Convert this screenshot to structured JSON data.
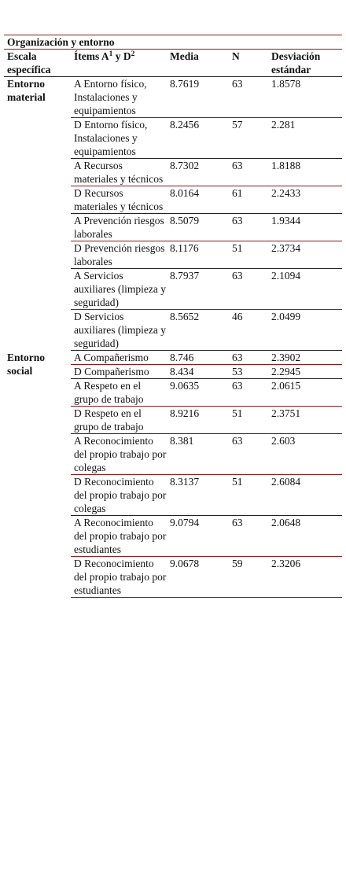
{
  "table": {
    "title": "Organización y entorno",
    "header": {
      "scale": "Escala específica",
      "items": [
        "Ítems A",
        "1",
        " y D",
        "2"
      ],
      "mean": "Media",
      "n": "N",
      "sd": "Desviación estándar"
    },
    "groups": [
      {
        "name": "Entorno material",
        "rows": [
          [
            "A Entorno físico, Instalaciones y equipamientos",
            8.7619,
            63,
            1.8578
          ],
          [
            "D Entorno físico, Instalaciones y equipamientos",
            8.2456,
            57,
            2.281
          ],
          [
            "A Recursos materiales y técnicos",
            8.7302,
            63,
            1.8188
          ],
          [
            "D Recursos materiales y técnicos",
            8.0164,
            61,
            2.2433
          ],
          [
            "A Prevención riesgos laborales",
            8.5079,
            63,
            1.9344
          ],
          [
            "D Prevención riesgos laborales",
            8.1176,
            51,
            2.3734
          ],
          [
            "A Servicios auxiliares (limpieza y seguridad)",
            8.7937,
            63,
            2.1094
          ],
          [
            "D Servicios auxiliares (limpieza y seguridad)",
            8.5652,
            46,
            2.0499
          ]
        ]
      },
      {
        "name": "Entorno social",
        "rows": [
          [
            "A Compañerismo",
            8.746,
            63,
            2.3902
          ],
          [
            "D Compañerismo",
            8.434,
            53,
            2.2945
          ],
          [
            "A Respeto en el grupo de trabajo",
            9.0635,
            63,
            2.0615
          ],
          [
            "D Respeto en el grupo de trabajo",
            8.9216,
            51,
            2.3751
          ],
          [
            "A Reconocimiento del propio trabajo por colegas",
            8.381,
            63,
            2.603
          ],
          [
            "D Reconocimiento del propio trabajo por colegas",
            8.3137,
            51,
            2.6084
          ],
          [
            "A Reconocimiento del propio trabajo por estudiantes",
            9.0794,
            63,
            2.0648
          ],
          [
            "D Reconocimiento del propio trabajo por estudiantes",
            9.0678,
            59,
            2.3206
          ]
        ]
      }
    ]
  }
}
